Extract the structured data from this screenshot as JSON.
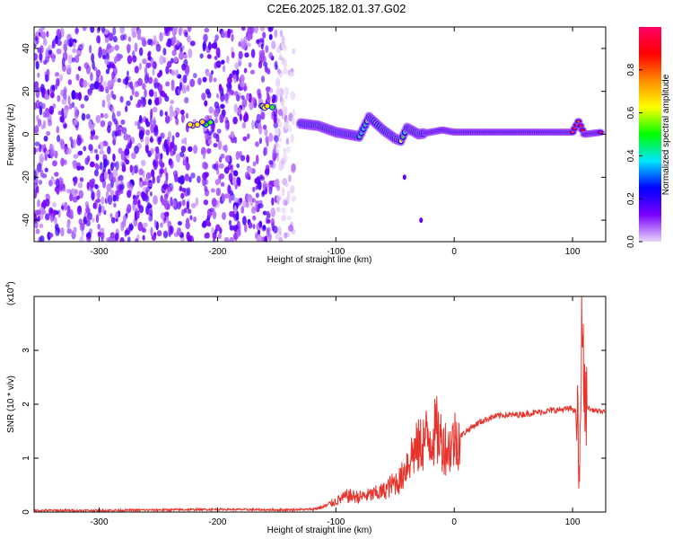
{
  "page": {
    "title": "C2E6.2025.182.01.37.G02"
  },
  "chart_data": [
    {
      "type": "heatmap",
      "xlabel": "Height of straight line (km)",
      "ylabel": "Frequency (Hz)",
      "xlim": [
        -355,
        128
      ],
      "ylim": [
        -50,
        50
      ],
      "xticks": [
        -300,
        -200,
        -100,
        0,
        100
      ],
      "yticks": [
        -40,
        -20,
        0,
        20,
        40
      ],
      "colorbar": {
        "label": "Normalized spectral amplitude",
        "range": [
          0,
          1
        ],
        "ticks": [
          "0.0",
          "0.2",
          "0.4",
          "0.6",
          "0.8"
        ],
        "tick_values": [
          0.0,
          0.2,
          0.4,
          0.6,
          0.8
        ],
        "colors": [
          "#e8d6f7",
          "#7a00ff",
          "#0000ff",
          "#00e5ff",
          "#00ff00",
          "#ffff00",
          "#ff8c00",
          "#ff0000",
          "#ff0066"
        ]
      },
      "features": {
        "noise_region_x": [
          -355,
          -135
        ],
        "gap_region_x": [
          -222,
          -212
        ],
        "band_low_x": [
          -224,
          -200
        ],
        "band_low_freq": 5,
        "band_high_x": [
          -165,
          -153
        ],
        "band_high_freq": 13,
        "signal_points": [
          [
            -130,
            5
          ],
          [
            -115,
            4
          ],
          [
            -100,
            1
          ],
          [
            -90,
            0
          ],
          [
            -80,
            -1
          ],
          [
            -72,
            8
          ],
          [
            -68,
            6
          ],
          [
            -60,
            2
          ],
          [
            -50,
            -2
          ],
          [
            -45,
            -3
          ],
          [
            -40,
            3
          ],
          [
            -30,
            0
          ],
          [
            -20,
            1
          ],
          [
            -10,
            2
          ],
          [
            0,
            1
          ],
          [
            10,
            1
          ],
          [
            30,
            1
          ],
          [
            50,
            1
          ],
          [
            70,
            1
          ],
          [
            90,
            1
          ],
          [
            100,
            1
          ],
          [
            105,
            6
          ],
          [
            110,
            0
          ],
          [
            125,
            1
          ]
        ],
        "stray_points": [
          [
            -42,
            -20
          ],
          [
            -28,
            -40
          ]
        ]
      }
    },
    {
      "type": "line",
      "xlabel": "Height of straight line (km)",
      "ylabel": "SNR (10 * v/v)",
      "multiplier": "(x10",
      "multiplier_exp": "4",
      "multiplier_close": ")",
      "xlim": [
        -355,
        128
      ],
      "ylim": [
        0,
        4
      ],
      "xticks": [
        -300,
        -200,
        -100,
        0,
        100
      ],
      "yticks": [
        0,
        1,
        2,
        3
      ],
      "color": "#e8332c",
      "series": [
        {
          "x": [
            -355,
            -300,
            -250,
            -200,
            -150,
            -120,
            -110,
            -100,
            -90,
            -80,
            -70,
            -60,
            -50,
            -45,
            -40,
            -35,
            -30,
            -25,
            -20,
            -15,
            -10,
            -5,
            0,
            5,
            10,
            20,
            30,
            40,
            50,
            60,
            70,
            80,
            90,
            100,
            104,
            106,
            108,
            110,
            115,
            128
          ],
          "y": [
            0.03,
            0.03,
            0.04,
            0.05,
            0.04,
            0.05,
            0.1,
            0.2,
            0.3,
            0.28,
            0.32,
            0.38,
            0.55,
            0.6,
            0.9,
            1.1,
            1.2,
            1.35,
            1.4,
            1.5,
            1.3,
            1.15,
            1.35,
            1.4,
            1.5,
            1.65,
            1.75,
            1.8,
            1.8,
            1.82,
            1.85,
            1.88,
            1.9,
            1.92,
            1.8,
            0.4,
            3.9,
            2.0,
            1.9,
            1.85
          ]
        }
      ]
    }
  ]
}
